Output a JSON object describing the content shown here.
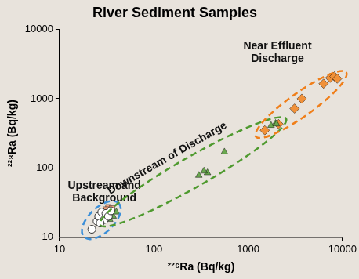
{
  "chart_data": {
    "type": "scatter",
    "title": "River Sediment Samples",
    "x_label": "²²⁶Ra (Bq/kg)",
    "y_label": "²²⁸Ra (Bq/kg)",
    "log": true,
    "grid": false,
    "xlim": [
      10,
      10000
    ],
    "ylim": [
      10,
      10000
    ],
    "xticks": [
      10,
      100,
      1000,
      10000
    ],
    "yticks": [
      10,
      100,
      1000,
      10000
    ],
    "series": [
      {
        "name": "Upstream and Background",
        "color": "#ffffff",
        "marker": "circle",
        "x": [
          22,
          25,
          26,
          28,
          30,
          31,
          33,
          35,
          27
        ],
        "values": [
          13,
          17,
          20,
          23,
          18,
          22,
          20,
          24,
          16
        ]
      },
      {
        "color": "#f4a582",
        "marker": "square",
        "x": [
          33,
          36,
          31
        ],
        "values": [
          27,
          26,
          25
        ]
      },
      {
        "name": "Downstream of Discharge",
        "color": "#6aa84f",
        "marker": "triangle",
        "x": [
          34,
          37,
          40,
          300,
          370,
          340,
          560,
          1750,
          1950,
          2000
        ],
        "values": [
          18,
          20,
          23,
          78,
          85,
          90,
          170,
          410,
          440,
          430
        ]
      },
      {
        "name": "Near Effluent Discharge",
        "color": "#f0913a",
        "marker": "diamond",
        "x": [
          1500,
          2100,
          3100,
          3700,
          6300,
          7400,
          8200,
          8800
        ],
        "values": [
          350,
          430,
          720,
          1000,
          1650,
          2000,
          2100,
          1950
        ]
      }
    ]
  }
}
